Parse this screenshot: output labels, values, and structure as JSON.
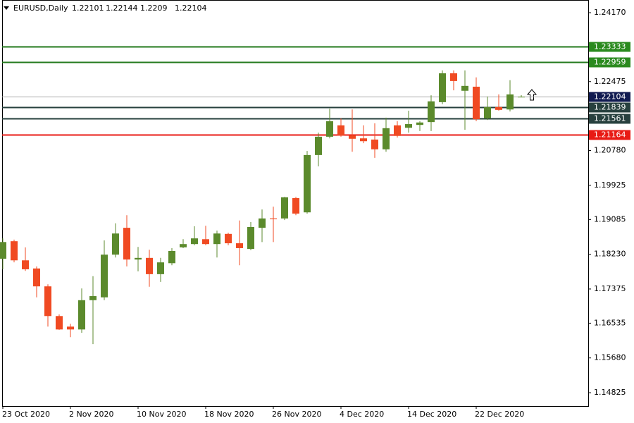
{
  "chart_data": {
    "type": "candlestick",
    "symbol": "EURUSD,Daily",
    "categories": [
      "23 Oct 2020",
      null,
      null,
      null,
      null,
      null,
      "2 Nov 2020",
      null,
      null,
      null,
      null,
      null,
      "10 Nov 2020",
      null,
      null,
      null,
      null,
      null,
      "18 Nov 2020",
      null,
      null,
      null,
      null,
      null,
      "26 Nov 2020",
      null,
      null,
      null,
      null,
      null,
      "4 Dec 2020",
      null,
      null,
      null,
      null,
      null,
      "14 Dec 2020",
      null,
      null,
      null,
      null,
      null,
      "22 Dec 2020",
      null,
      null,
      null,
      null
    ],
    "open": [
      1.1812,
      1.1855,
      1.1808,
      1.1788,
      1.1744,
      1.1671,
      1.1645,
      1.1638,
      1.171,
      1.1717,
      1.1822,
      1.1888,
      1.181,
      1.1814,
      1.1774,
      1.1801,
      1.184,
      1.1848,
      1.186,
      1.1848,
      1.1873,
      1.185,
      1.1836,
      1.1888,
      1.1911,
      1.1911,
      1.1961,
      1.1926,
      1.2067,
      1.2112,
      1.214,
      1.2115,
      1.2108,
      1.2105,
      1.2081,
      1.214,
      1.2134,
      1.2141,
      1.2148,
      1.2197,
      1.2268,
      1.2225,
      1.2235,
      1.2157,
      1.2185,
      1.2179,
      1.22101
    ],
    "high": [
      1.1862,
      1.1859,
      1.184,
      1.1793,
      1.1749,
      1.1675,
      1.1652,
      1.1739,
      1.1769,
      1.1857,
      1.1899,
      1.1919,
      1.1841,
      1.1834,
      1.1814,
      1.1838,
      1.186,
      1.1892,
      1.1893,
      1.1881,
      1.1876,
      1.1906,
      1.1902,
      1.1933,
      1.194,
      1.1964,
      1.1964,
      1.2077,
      1.2122,
      1.2181,
      1.2157,
      1.2179,
      1.214,
      1.2145,
      1.2159,
      1.215,
      1.2176,
      1.215,
      1.2214,
      1.2275,
      1.2275,
      1.2275,
      1.2258,
      1.2211,
      1.2216,
      1.2251,
      1.22144
    ],
    "low": [
      1.1786,
      1.1803,
      1.1782,
      1.1717,
      1.1645,
      1.1637,
      1.1619,
      1.163,
      1.1602,
      1.171,
      1.1815,
      1.1793,
      1.1781,
      1.1743,
      1.1755,
      1.1796,
      1.1838,
      1.1845,
      1.1845,
      1.1815,
      1.1845,
      1.1796,
      1.1833,
      1.1853,
      1.1853,
      1.1907,
      1.1919,
      1.1923,
      1.2039,
      1.2108,
      1.2112,
      1.2075,
      1.2096,
      1.206,
      1.2075,
      1.211,
      1.2122,
      1.2126,
      1.2126,
      1.2192,
      1.2226,
      1.2129,
      1.215,
      1.2153,
      1.2176,
      1.2174,
      1.2209
    ],
    "close": [
      1.1853,
      1.1808,
      1.1786,
      1.1744,
      1.1671,
      1.1638,
      1.1638,
      1.171,
      1.172,
      1.1822,
      1.1874,
      1.181,
      1.1814,
      1.1774,
      1.1803,
      1.1831,
      1.1848,
      1.1862,
      1.1848,
      1.1874,
      1.185,
      1.1838,
      1.189,
      1.1911,
      1.1909,
      1.1963,
      1.1923,
      1.2067,
      1.2112,
      1.215,
      1.2115,
      1.2107,
      1.2101,
      1.2081,
      1.2133,
      1.2114,
      1.2143,
      1.2147,
      1.2199,
      1.2268,
      1.2249,
      1.2237,
      1.2155,
      1.2185,
      1.2178,
      1.2216,
      1.22104
    ],
    "up_color": "#5b8a2c",
    "down_color": "#f04a22",
    "ylim": [
      1.14496,
      1.24482
    ],
    "yticks": [
      {
        "value": 1.2417,
        "label": "1.24170"
      },
      1.22475,
      {
        "value": 1.2078,
        "label": "1.20780"
      },
      1.19925,
      1.19085,
      {
        "value": 1.1823,
        "label": "1.18230"
      },
      1.17375,
      1.16535,
      {
        "value": 1.1568,
        "label": "1.15680"
      },
      1.14825
    ],
    "levels": [
      {
        "value": 1.23333,
        "color": "#237a1d",
        "label_color": "#2a8a1e"
      },
      {
        "value": 1.22959,
        "color": "#237a1d",
        "label_color": "#2a8a1e"
      },
      {
        "value": 1.22104,
        "color": "#a8a8a8",
        "label_color": "#101a50"
      },
      {
        "value": 1.21839,
        "color": "#27403e",
        "label_color": "#27403e"
      },
      {
        "value": 1.21561,
        "color": "#27403e",
        "label_color": "#27403e"
      },
      {
        "value": 1.21164,
        "color": "#e81a14",
        "label_color": "#e81a14"
      }
    ]
  }
}
